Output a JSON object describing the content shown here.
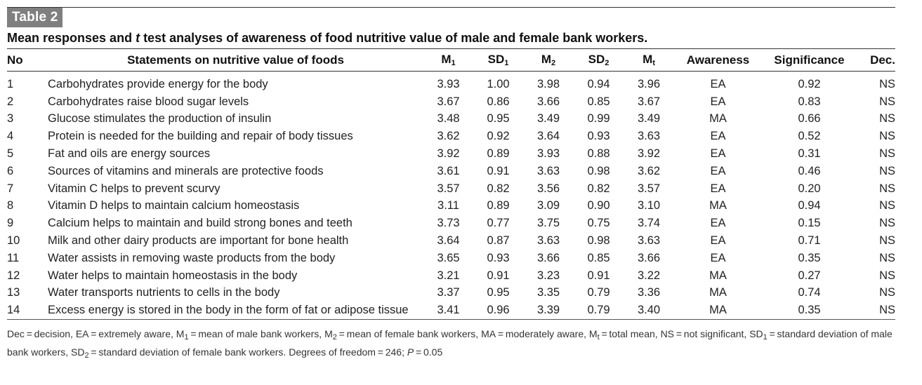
{
  "table_label": "Table 2",
  "caption": {
    "before": "Mean responses and ",
    "italic": "t",
    "after": " test analyses of awareness of food nutritive value of male and female bank workers."
  },
  "columns": {
    "no": "No",
    "statement": "Statements on nutritive value of foods",
    "m1": {
      "base": "M",
      "sub": "1"
    },
    "sd1": {
      "base": "SD",
      "sub": "1"
    },
    "m2": {
      "base": "M",
      "sub": "2"
    },
    "sd2": {
      "base": "SD",
      "sub": "2"
    },
    "mt": {
      "base": "M",
      "sub": "t"
    },
    "awareness": "Awareness",
    "significance": "Significance",
    "dec": "Dec."
  },
  "rows": [
    {
      "no": "1",
      "statement": "Carbohydrates provide energy for the body",
      "m1": "3.93",
      "sd1": "1.00",
      "m2": "3.98",
      "sd2": "0.94",
      "mt": "3.96",
      "awareness": "EA",
      "significance": "0.92",
      "dec": "NS"
    },
    {
      "no": "2",
      "statement": "Carbohydrates raise blood sugar levels",
      "m1": "3.67",
      "sd1": "0.86",
      "m2": "3.66",
      "sd2": "0.85",
      "mt": "3.67",
      "awareness": "EA",
      "significance": "0.83",
      "dec": "NS"
    },
    {
      "no": "3",
      "statement": "Glucose stimulates the production of insulin",
      "m1": "3.48",
      "sd1": "0.95",
      "m2": "3.49",
      "sd2": "0.99",
      "mt": "3.49",
      "awareness": "MA",
      "significance": "0.66",
      "dec": "NS"
    },
    {
      "no": "4",
      "statement": "Protein is needed for the building and repair of body tissues",
      "m1": "3.62",
      "sd1": "0.92",
      "m2": "3.64",
      "sd2": "0.93",
      "mt": "3.63",
      "awareness": "EA",
      "significance": "0.52",
      "dec": "NS"
    },
    {
      "no": "5",
      "statement": "Fat and oils are energy sources",
      "m1": "3.92",
      "sd1": "0.89",
      "m2": "3.93",
      "sd2": "0.88",
      "mt": "3.92",
      "awareness": "EA",
      "significance": "0.31",
      "dec": "NS"
    },
    {
      "no": "6",
      "statement": "Sources of vitamins and minerals are protective foods",
      "m1": "3.61",
      "sd1": "0.91",
      "m2": "3.63",
      "sd2": "0.98",
      "mt": "3.62",
      "awareness": "EA",
      "significance": "0.46",
      "dec": "NS"
    },
    {
      "no": "7",
      "statement": "Vitamin C helps to prevent scurvy",
      "m1": "3.57",
      "sd1": "0.82",
      "m2": "3.56",
      "sd2": "0.82",
      "mt": "3.57",
      "awareness": "EA",
      "significance": "0.20",
      "dec": "NS"
    },
    {
      "no": "8",
      "statement": "Vitamin D helps to maintain calcium homeostasis",
      "m1": "3.11",
      "sd1": "0.89",
      "m2": "3.09",
      "sd2": "0.90",
      "mt": "3.10",
      "awareness": "MA",
      "significance": "0.94",
      "dec": "NS"
    },
    {
      "no": "9",
      "statement": "Calcium helps to maintain and build strong bones and teeth",
      "m1": "3.73",
      "sd1": "0.77",
      "m2": "3.75",
      "sd2": "0.75",
      "mt": "3.74",
      "awareness": "EA",
      "significance": "0.15",
      "dec": "NS"
    },
    {
      "no": "10",
      "statement": "Milk and other dairy products are important for bone health",
      "m1": "3.64",
      "sd1": "0.87",
      "m2": "3.63",
      "sd2": "0.98",
      "mt": "3.63",
      "awareness": "EA",
      "significance": "0.71",
      "dec": "NS"
    },
    {
      "no": "11",
      "statement": "Water assists in removing waste products from the body",
      "m1": "3.65",
      "sd1": "0.93",
      "m2": "3.66",
      "sd2": "0.85",
      "mt": "3.66",
      "awareness": "EA",
      "significance": "0.35",
      "dec": "NS"
    },
    {
      "no": "12",
      "statement": "Water helps to maintain homeostasis in the body",
      "m1": "3.21",
      "sd1": "0.91",
      "m2": "3.23",
      "sd2": "0.91",
      "mt": "3.22",
      "awareness": "MA",
      "significance": "0.27",
      "dec": "NS"
    },
    {
      "no": "13",
      "statement": "Water transports nutrients to cells in the body",
      "m1": "3.37",
      "sd1": "0.95",
      "m2": "3.35",
      "sd2": "0.79",
      "mt": "3.36",
      "awareness": "MA",
      "significance": "0.74",
      "dec": "NS"
    },
    {
      "no": "14",
      "statement": "Excess energy is stored in the body in the form of fat or adipose tissue",
      "m1": "3.41",
      "sd1": "0.96",
      "m2": "3.39",
      "sd2": "0.79",
      "mt": "3.40",
      "awareness": "MA",
      "significance": "0.35",
      "dec": "NS"
    }
  ],
  "footnote": {
    "p1": "Dec = decision, EA = extremely aware, M",
    "s1": "1",
    "p2": " = mean of male bank workers, M",
    "s2": "2",
    "p3": " = mean of female bank workers, MA = moderately aware, M",
    "s3": "t",
    "p4": " = total mean, NS = not significant, SD",
    "s4": "1",
    "p5": " = standard deviation of male bank workers, SD",
    "s5": "2",
    "p6": " = standard deviation of female bank workers. Degrees of freedom = 246; ",
    "p_italic": "P",
    "p7": " = 0.05"
  }
}
